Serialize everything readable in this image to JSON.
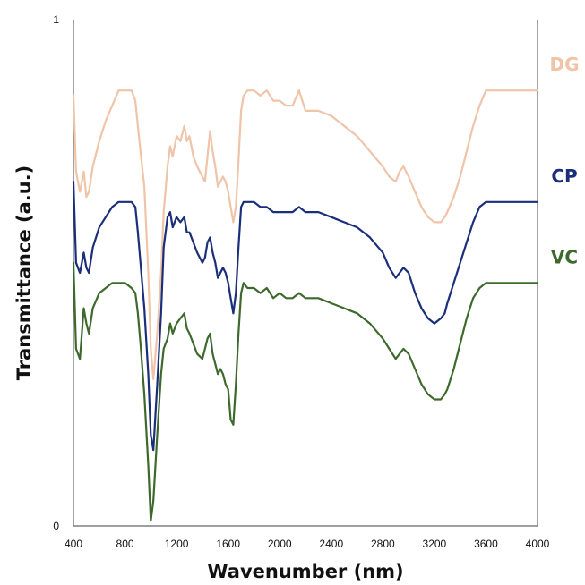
{
  "chart_data": {
    "type": "line",
    "xlabel": "Wavenumber (nm)",
    "ylabel": "Transmittance (a.u.)",
    "xlim": [
      400,
      4000
    ],
    "ylim": [
      0,
      1
    ],
    "x_ticks": [
      "400",
      "800",
      "1200",
      "1600",
      "2000",
      "2400",
      "2800",
      "3200",
      "3600",
      "4000"
    ],
    "y_ticks": [
      "0",
      "1"
    ],
    "grid": false,
    "legend": "right, labels placed next to line ends",
    "series": [
      {
        "name": "DG",
        "color": "#efc4a8",
        "x": [
          400,
          420,
          450,
          480,
          500,
          520,
          550,
          600,
          650,
          700,
          750,
          800,
          850,
          880,
          900,
          920,
          950,
          980,
          1000,
          1020,
          1050,
          1080,
          1100,
          1130,
          1150,
          1170,
          1200,
          1230,
          1260,
          1280,
          1300,
          1330,
          1360,
          1400,
          1420,
          1440,
          1460,
          1480,
          1500,
          1520,
          1540,
          1560,
          1580,
          1600,
          1620,
          1640,
          1660,
          1680,
          1700,
          1720,
          1750,
          1800,
          1850,
          1900,
          1950,
          2000,
          2050,
          2100,
          2150,
          2200,
          2250,
          2300,
          2400,
          2500,
          2600,
          2700,
          2800,
          2850,
          2900,
          2930,
          2960,
          3000,
          3050,
          3100,
          3150,
          3200,
          3250,
          3280,
          3300,
          3350,
          3400,
          3450,
          3500,
          3550,
          3600,
          3650,
          3700,
          3800,
          3900,
          4000
        ],
        "y": [
          0.85,
          0.7,
          0.66,
          0.7,
          0.65,
          0.66,
          0.71,
          0.76,
          0.8,
          0.83,
          0.86,
          0.86,
          0.86,
          0.84,
          0.79,
          0.74,
          0.67,
          0.5,
          0.35,
          0.29,
          0.38,
          0.5,
          0.62,
          0.71,
          0.75,
          0.73,
          0.77,
          0.76,
          0.79,
          0.76,
          0.77,
          0.73,
          0.71,
          0.69,
          0.68,
          0.73,
          0.78,
          0.74,
          0.71,
          0.67,
          0.68,
          0.69,
          0.68,
          0.66,
          0.63,
          0.6,
          0.63,
          0.72,
          0.82,
          0.85,
          0.86,
          0.86,
          0.85,
          0.86,
          0.84,
          0.84,
          0.83,
          0.83,
          0.86,
          0.82,
          0.82,
          0.82,
          0.81,
          0.79,
          0.77,
          0.74,
          0.71,
          0.69,
          0.68,
          0.7,
          0.71,
          0.69,
          0.66,
          0.63,
          0.61,
          0.6,
          0.6,
          0.61,
          0.62,
          0.65,
          0.69,
          0.74,
          0.79,
          0.83,
          0.86,
          0.86,
          0.86,
          0.86,
          0.86,
          0.86
        ]
      },
      {
        "name": "CP",
        "color": "#1a2e7a",
        "x": [
          400,
          420,
          450,
          480,
          500,
          520,
          550,
          600,
          650,
          700,
          750,
          800,
          850,
          880,
          900,
          920,
          950,
          980,
          1000,
          1020,
          1050,
          1080,
          1100,
          1130,
          1150,
          1170,
          1200,
          1230,
          1260,
          1280,
          1300,
          1330,
          1360,
          1400,
          1420,
          1440,
          1460,
          1480,
          1500,
          1520,
          1540,
          1560,
          1580,
          1600,
          1620,
          1640,
          1660,
          1680,
          1700,
          1720,
          1750,
          1800,
          1850,
          1900,
          1950,
          2000,
          2050,
          2100,
          2150,
          2200,
          2250,
          2300,
          2400,
          2500,
          2600,
          2700,
          2800,
          2850,
          2900,
          2930,
          2960,
          3000,
          3050,
          3100,
          3150,
          3200,
          3250,
          3280,
          3300,
          3350,
          3400,
          3450,
          3500,
          3550,
          3600,
          3650,
          3700,
          3800,
          3900,
          4000
        ],
        "y": [
          0.68,
          0.52,
          0.5,
          0.54,
          0.51,
          0.5,
          0.55,
          0.59,
          0.61,
          0.63,
          0.64,
          0.64,
          0.64,
          0.63,
          0.58,
          0.52,
          0.43,
          0.3,
          0.18,
          0.15,
          0.28,
          0.42,
          0.55,
          0.61,
          0.62,
          0.59,
          0.61,
          0.6,
          0.61,
          0.58,
          0.58,
          0.56,
          0.54,
          0.52,
          0.53,
          0.56,
          0.57,
          0.54,
          0.52,
          0.49,
          0.5,
          0.51,
          0.5,
          0.48,
          0.45,
          0.42,
          0.46,
          0.55,
          0.63,
          0.64,
          0.64,
          0.64,
          0.63,
          0.63,
          0.62,
          0.62,
          0.62,
          0.62,
          0.63,
          0.62,
          0.62,
          0.62,
          0.61,
          0.6,
          0.59,
          0.57,
          0.54,
          0.51,
          0.49,
          0.5,
          0.51,
          0.5,
          0.46,
          0.43,
          0.41,
          0.4,
          0.41,
          0.42,
          0.44,
          0.48,
          0.52,
          0.56,
          0.6,
          0.63,
          0.64,
          0.64,
          0.64,
          0.64,
          0.64,
          0.64
        ]
      },
      {
        "name": "VC",
        "color": "#3d6a2c",
        "x": [
          400,
          420,
          450,
          480,
          500,
          520,
          550,
          600,
          650,
          700,
          750,
          800,
          850,
          880,
          900,
          920,
          950,
          980,
          1000,
          1020,
          1050,
          1080,
          1100,
          1130,
          1150,
          1170,
          1200,
          1230,
          1260,
          1280,
          1300,
          1330,
          1360,
          1400,
          1420,
          1440,
          1460,
          1480,
          1500,
          1520,
          1540,
          1560,
          1580,
          1600,
          1620,
          1640,
          1660,
          1680,
          1700,
          1720,
          1750,
          1800,
          1850,
          1900,
          1950,
          2000,
          2050,
          2100,
          2150,
          2200,
          2250,
          2300,
          2400,
          2500,
          2600,
          2700,
          2800,
          2850,
          2900,
          2930,
          2960,
          3000,
          3050,
          3100,
          3150,
          3200,
          3250,
          3280,
          3300,
          3350,
          3400,
          3450,
          3500,
          3550,
          3600,
          3650,
          3700,
          3800,
          3900,
          4000
        ],
        "y": [
          0.52,
          0.35,
          0.33,
          0.43,
          0.4,
          0.38,
          0.43,
          0.46,
          0.47,
          0.48,
          0.48,
          0.48,
          0.47,
          0.46,
          0.42,
          0.36,
          0.26,
          0.12,
          0.01,
          0.05,
          0.18,
          0.3,
          0.35,
          0.37,
          0.4,
          0.38,
          0.4,
          0.41,
          0.42,
          0.39,
          0.38,
          0.36,
          0.34,
          0.33,
          0.35,
          0.37,
          0.38,
          0.34,
          0.32,
          0.3,
          0.31,
          0.3,
          0.28,
          0.27,
          0.21,
          0.2,
          0.28,
          0.38,
          0.46,
          0.48,
          0.47,
          0.47,
          0.46,
          0.47,
          0.45,
          0.46,
          0.45,
          0.45,
          0.46,
          0.45,
          0.45,
          0.45,
          0.44,
          0.43,
          0.42,
          0.4,
          0.37,
          0.35,
          0.33,
          0.34,
          0.35,
          0.34,
          0.31,
          0.28,
          0.26,
          0.25,
          0.25,
          0.26,
          0.27,
          0.31,
          0.36,
          0.41,
          0.45,
          0.47,
          0.48,
          0.48,
          0.48,
          0.48,
          0.48,
          0.48
        ]
      }
    ]
  }
}
